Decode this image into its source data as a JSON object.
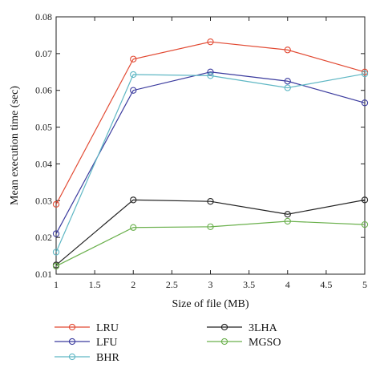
{
  "chart_data": {
    "type": "line",
    "title": "",
    "xlabel": "Size of file (MB)",
    "ylabel": "Mean execution time (sec)",
    "xlim": [
      1,
      5
    ],
    "ylim": [
      0.01,
      0.08
    ],
    "x_ticks": [
      "1",
      "1.5",
      "2",
      "2.5",
      "3",
      "3.5",
      "4",
      "4.5",
      "5"
    ],
    "y_ticks": [
      "0.01",
      "0.02",
      "0.03",
      "0.04",
      "0.05",
      "0.06",
      "0.07",
      "0.08"
    ],
    "grid": false,
    "legend_position": "bottom",
    "x": [
      1,
      2,
      3,
      4,
      5
    ],
    "series": [
      {
        "name": "LRU",
        "color": "#e24a33",
        "values": [
          0.029,
          0.0685,
          0.0732,
          0.071,
          0.065
        ]
      },
      {
        "name": "LFU",
        "color": "#3b3b9e",
        "values": [
          0.021,
          0.06,
          0.065,
          0.0625,
          0.0566
        ]
      },
      {
        "name": "BHR",
        "color": "#5fb7c4",
        "values": [
          0.016,
          0.0643,
          0.064,
          0.0607,
          0.0645
        ]
      },
      {
        "name": "3LHA",
        "color": "#222222",
        "values": [
          0.0125,
          0.0302,
          0.0298,
          0.0263,
          0.0302
        ]
      },
      {
        "name": "MGSO",
        "color": "#6ab04c",
        "values": [
          0.0122,
          0.0227,
          0.0229,
          0.0244,
          0.0235
        ]
      }
    ]
  }
}
